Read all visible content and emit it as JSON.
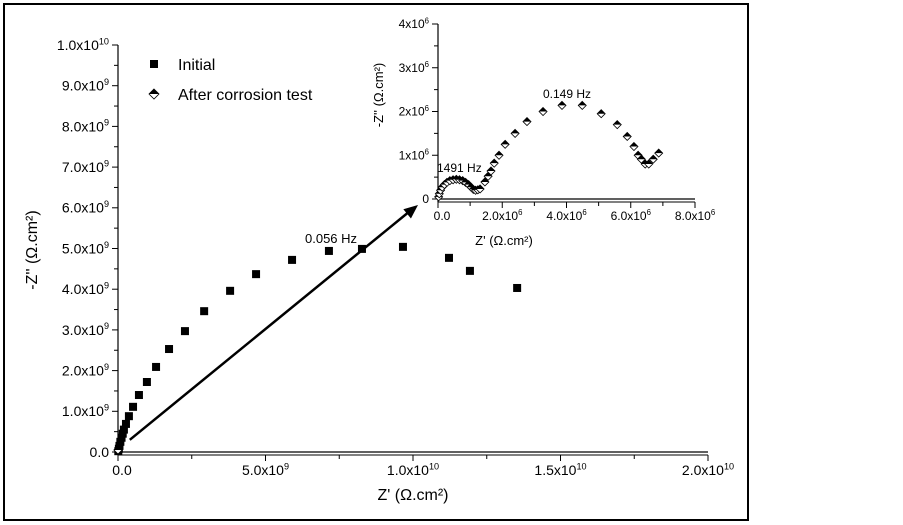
{
  "chart_data": [
    {
      "type": "scatter",
      "xlabel": "Z' (Ω.cm²)",
      "ylabel": "-Z'' (Ω.cm²)",
      "xlim": [
        0,
        20000000000.0
      ],
      "ylim": [
        0,
        10000000000.0
      ],
      "grid": false,
      "legend_placement": "top-left",
      "x_ticks": [
        {
          "value": 0,
          "base": "0.0",
          "exp": ""
        },
        {
          "value": 5000000000.0,
          "base": "5.0x10",
          "exp": "9"
        },
        {
          "value": 10000000000.0,
          "base": "1.0x10",
          "exp": "10"
        },
        {
          "value": 15000000000.0,
          "base": "1.5x10",
          "exp": "10"
        },
        {
          "value": 20000000000.0,
          "base": "2.0x10",
          "exp": "10"
        }
      ],
      "y_ticks": [
        {
          "value": 0,
          "base": "0.0",
          "exp": ""
        },
        {
          "value": 1000000000.0,
          "base": "1.0x10",
          "exp": "9"
        },
        {
          "value": 2000000000.0,
          "base": "2.0x10",
          "exp": "9"
        },
        {
          "value": 3000000000.0,
          "base": "3.0x10",
          "exp": "9"
        },
        {
          "value": 4000000000.0,
          "base": "4.0x10",
          "exp": "9"
        },
        {
          "value": 5000000000.0,
          "base": "5.0x10",
          "exp": "9"
        },
        {
          "value": 6000000000.0,
          "base": "6.0x10",
          "exp": "9"
        },
        {
          "value": 7000000000.0,
          "base": "7.0x10",
          "exp": "9"
        },
        {
          "value": 8000000000.0,
          "base": "8.0x10",
          "exp": "9"
        },
        {
          "value": 9000000000.0,
          "base": "9.0x10",
          "exp": "9"
        },
        {
          "value": 10000000000.0,
          "base": "1.0x10",
          "exp": "10"
        }
      ],
      "series": [
        {
          "name": "Initial",
          "marker": "square",
          "x": [
            10000000.0,
            30000000.0,
            50000000.0,
            80000000.0,
            120000000.0,
            160000000.0,
            200000000.0,
            270000000.0,
            370000000.0,
            510000000.0,
            710000000.0,
            980000000.0,
            1290000000.0,
            1730000000.0,
            2270000000.0,
            2920000000.0,
            3800000000.0,
            4680000000.0,
            5900000000.0,
            7150000000.0,
            8270000000.0,
            9660000000.0,
            11220000000.0,
            11930000000.0,
            13530000000.0
          ],
          "y": [
            20000000.0,
            80000000.0,
            150000000.0,
            250000000.0,
            350000000.0,
            450000000.0,
            550000000.0,
            690000000.0,
            880000000.0,
            1110000000.0,
            1400000000.0,
            1720000000.0,
            2090000000.0,
            2530000000.0,
            2970000000.0,
            3460000000.0,
            3960000000.0,
            4370000000.0,
            4720000000.0,
            4940000000.0,
            4990000000.0,
            5040000000.0,
            4770000000.0,
            4450000000.0,
            4030000000.0
          ]
        },
        {
          "name": "After corrosion test",
          "marker": "half-filled-diamond",
          "x": [
            0,
            0,
            0,
            0,
            0,
            0,
            0
          ],
          "y": [
            0,
            0,
            0,
            0,
            0,
            0,
            0
          ]
        }
      ],
      "annotations": [
        {
          "text": "0.056 Hz",
          "x": 6500000000.0,
          "y": 5250000000.0
        }
      ],
      "arrow": {
        "from": [
          400000000.0,
          300000000.0
        ],
        "to": "inset"
      }
    },
    {
      "type": "scatter",
      "inset": true,
      "xlabel": "Z' (Ω.cm²)",
      "ylabel": "-Z'' (Ω.cm²)",
      "xlim": [
        0,
        8000000.0
      ],
      "ylim": [
        0,
        4000000.0
      ],
      "grid": false,
      "x_ticks": [
        {
          "value": 0,
          "base": "0.0",
          "exp": ""
        },
        {
          "value": 2000000.0,
          "base": "2.0x10",
          "exp": "6"
        },
        {
          "value": 4000000.0,
          "base": "4.0x10",
          "exp": "6"
        },
        {
          "value": 6000000.0,
          "base": "6.0x10",
          "exp": "6"
        },
        {
          "value": 8000000.0,
          "base": "8.0x10",
          "exp": "6"
        }
      ],
      "y_ticks": [
        {
          "value": 0,
          "base": "0",
          "exp": ""
        },
        {
          "value": 1000000.0,
          "base": "1x10",
          "exp": "6"
        },
        {
          "value": 2000000.0,
          "base": "2x10",
          "exp": "6"
        },
        {
          "value": 3000000.0,
          "base": "3x10",
          "exp": "6"
        },
        {
          "value": 4000000.0,
          "base": "4x10",
          "exp": "6"
        }
      ],
      "series": [
        {
          "name": "After corrosion test",
          "marker": "half-filled-diamond",
          "x": [
            20000.0,
            40000.0,
            80000.0,
            130000.0,
            200000.0,
            280000.0,
            370000.0,
            470000.0,
            570000.0,
            670000.0,
            770000.0,
            860000.0,
            950000.0,
            1030000.0,
            1100000.0,
            1170000.0,
            1240000.0,
            1310000.0,
            1460000.0,
            1560000.0,
            1650000.0,
            1750000.0,
            1900000.0,
            2090000.0,
            2400000.0,
            2770000.0,
            3270000.0,
            3860000.0,
            4490000.0,
            5080000.0,
            5580000.0,
            5890000.0,
            6100000.0,
            6230000.0,
            6330000.0,
            6450000.0,
            6560000.0,
            6700000.0,
            6870000.0
          ],
          "y": [
            50000.0,
            120000.0,
            200000.0,
            270000.0,
            330000.0,
            380000.0,
            420000.0,
            440000.0,
            450000.0,
            440000.0,
            420000.0,
            380000.0,
            330000.0,
            270000.0,
            220000.0,
            200000.0,
            210000.0,
            230000.0,
            390000.0,
            520000.0,
            640000.0,
            820000.0,
            1000000.0,
            1250000.0,
            1500000.0,
            1770000.0,
            2000000.0,
            2140000.0,
            2140000.0,
            1950000.0,
            1700000.0,
            1430000.0,
            1200000.0,
            1000000.0,
            910000.0,
            800000.0,
            800000.0,
            910000.0,
            1050000.0
          ]
        }
      ],
      "annotations": [
        {
          "text": "0.149 Hz",
          "x": 4100000.0,
          "y": 2380000.0
        },
        {
          "text": "1491 Hz",
          "x": 700000.0,
          "y": 720000.0
        }
      ]
    }
  ]
}
